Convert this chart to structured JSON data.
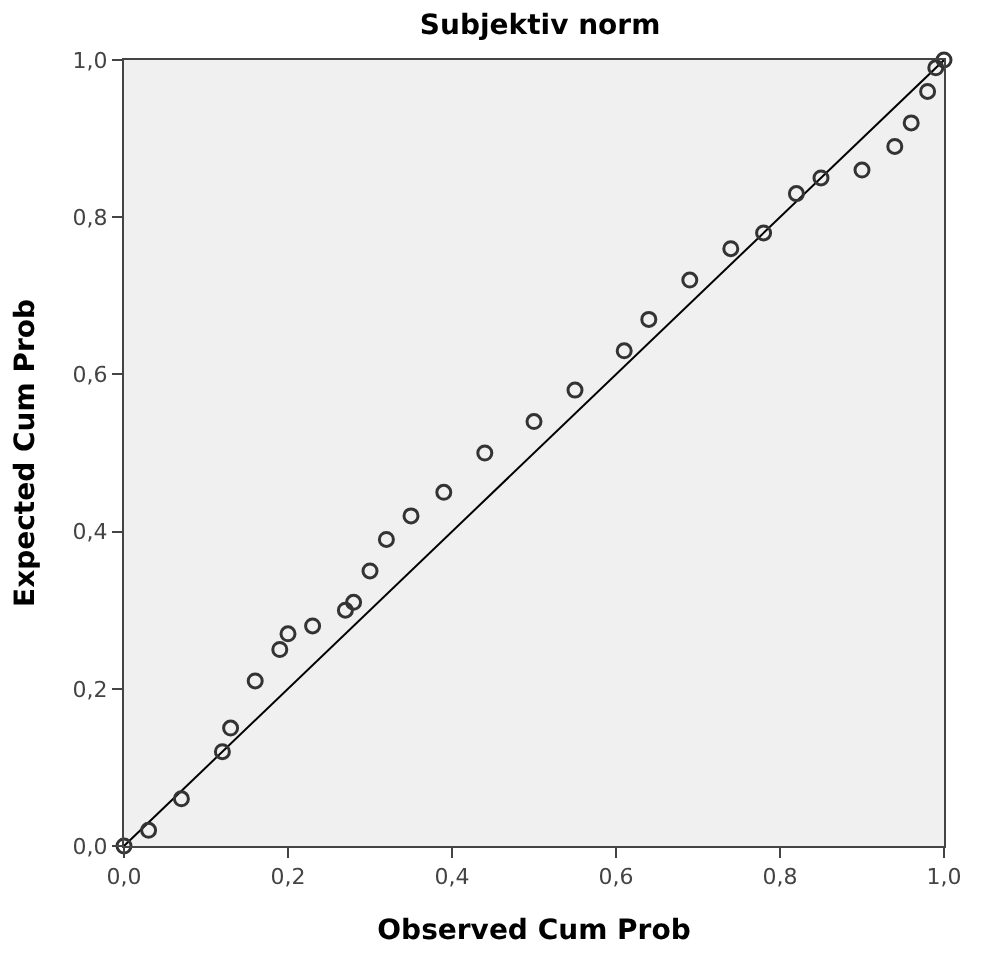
{
  "chart_data": {
    "type": "scatter",
    "title": "Subjektiv norm",
    "xlabel": "Observed Cum Prob",
    "ylabel": "Expected Cum Prob",
    "xlim": [
      0,
      1
    ],
    "ylim": [
      0,
      1
    ],
    "xticks": [
      {
        "value": 0,
        "label": "0,0"
      },
      {
        "value": 0.2,
        "label": "0,2"
      },
      {
        "value": 0.4,
        "label": "0,4"
      },
      {
        "value": 0.6,
        "label": "0,6"
      },
      {
        "value": 0.8,
        "label": "0,8"
      },
      {
        "value": 1,
        "label": "1,0"
      }
    ],
    "yticks": [
      {
        "value": 0,
        "label": "0,0"
      },
      {
        "value": 0.2,
        "label": "0,2"
      },
      {
        "value": 0.4,
        "label": "0,4"
      },
      {
        "value": 0.6,
        "label": "0,6"
      },
      {
        "value": 0.8,
        "label": "0,8"
      },
      {
        "value": 1,
        "label": "1,0"
      }
    ],
    "grid": false,
    "marker": "circle",
    "series": [
      {
        "type": "line",
        "color": "#000000",
        "marker": "none",
        "x": [
          0,
          1
        ],
        "values": [
          0,
          1
        ]
      },
      {
        "color": "#333333",
        "x": [
          0.0,
          0.03,
          0.07,
          0.12,
          0.13,
          0.16,
          0.19,
          0.2,
          0.23,
          0.27,
          0.28,
          0.3,
          0.32,
          0.35,
          0.39,
          0.44,
          0.5,
          0.55,
          0.61,
          0.64,
          0.69,
          0.74,
          0.78,
          0.82,
          0.85,
          0.9,
          0.94,
          0.96,
          0.98,
          0.99,
          1.0
        ],
        "values": [
          0.0,
          0.02,
          0.06,
          0.12,
          0.15,
          0.21,
          0.25,
          0.27,
          0.28,
          0.3,
          0.31,
          0.35,
          0.39,
          0.42,
          0.45,
          0.5,
          0.54,
          0.58,
          0.63,
          0.67,
          0.72,
          0.76,
          0.78,
          0.83,
          0.85,
          0.86,
          0.89,
          0.92,
          0.96,
          0.99,
          1.0
        ]
      }
    ]
  }
}
